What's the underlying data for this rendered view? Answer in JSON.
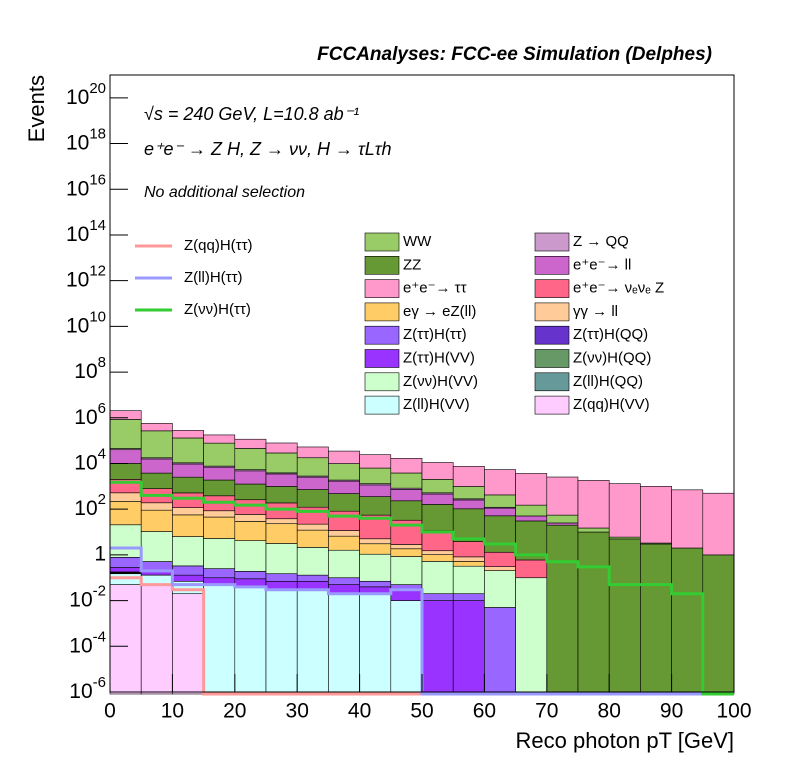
{
  "chart_data": {
    "type": "histogram",
    "title": "FCCAnalyses: FCC-ee Simulation (Delphes)",
    "annotations": [
      "√s = 240 GeV, L=10.8 ab⁻¹",
      "e⁺e⁻ → Z H, Z → νν, H → τLτh",
      "No additional selection"
    ],
    "x_label": "Reco photon pT [GeV]",
    "y_label": "Events",
    "log_y": true,
    "stacked": true,
    "bins": [
      0,
      5,
      10,
      15,
      20,
      25,
      30,
      35,
      40,
      45,
      50,
      55,
      60,
      65,
      70,
      75,
      80,
      85,
      90,
      95,
      100
    ],
    "xlim": [
      0,
      100
    ],
    "xticks": [
      0,
      10,
      20,
      30,
      40,
      50,
      60,
      70,
      80,
      90,
      100
    ],
    "ylim": [
      1e-06,
      1e+21
    ],
    "yticks": [
      {
        "value": 1e-06,
        "label": "10^-6"
      },
      {
        "value": 0.0001,
        "label": "10^-4"
      },
      {
        "value": 0.01,
        "label": "10^-2"
      },
      1,
      {
        "value": 100.0,
        "label": "10^2"
      },
      {
        "value": 10000.0,
        "label": "10^4"
      },
      {
        "value": 1000000.0,
        "label": "10^6"
      },
      {
        "value": 100000000.0,
        "label": "10^8"
      },
      {
        "value": 10000000000.0,
        "label": "10^10"
      },
      {
        "value": 1000000000000.0,
        "label": "10^12"
      },
      {
        "value": 100000000000000.0,
        "label": "10^14"
      },
      {
        "value": 1e+16,
        "label": "10^16"
      },
      {
        "value": 1e+18,
        "label": "10^18"
      },
      {
        "value": 1e+20,
        "label": "10^20"
      }
    ],
    "overlay_series": [
      {
        "name": "Z(qq)H(ττ)",
        "color": "#ff9999",
        "values": [
          0.1,
          0.05,
          0.03,
          0,
          0,
          0,
          0,
          0,
          0,
          0,
          0,
          0,
          0,
          0,
          0,
          0,
          0,
          0,
          0,
          0
        ]
      },
      {
        "name": "Z(ll)H(ττ)",
        "color": "#9999ff",
        "values": [
          2,
          0.2,
          0.05,
          0.05,
          0.04,
          0.03,
          0.03,
          0.02,
          0.02,
          0.03,
          0,
          0,
          0,
          0,
          0,
          0,
          0,
          0,
          0,
          0
        ]
      },
      {
        "name": "Z(νν)H(ττ)",
        "color": "#33cc33",
        "values": [
          1500,
          400,
          300,
          200,
          150,
          100,
          80,
          50,
          40,
          20,
          10,
          5,
          3,
          1,
          0.5,
          0.3,
          0.05,
          0.05,
          0.02,
          0
        ]
      }
    ],
    "series": [
      {
        "name": "WW",
        "color": "#99cc66",
        "values": [
          800000,
          250000,
          120000,
          70000,
          40000,
          25000,
          15000,
          8000,
          5000,
          3000,
          1500,
          700,
          300,
          100,
          30,
          5,
          1,
          0.3,
          0,
          0
        ]
      },
      {
        "name": "ZZ",
        "color": "#669933",
        "values": [
          8000,
          3000,
          2000,
          1500,
          1000,
          800,
          600,
          400,
          300,
          200,
          150,
          100,
          50,
          30,
          20,
          10,
          5,
          3,
          2,
          1
        ]
      },
      {
        "name": "e⁺e⁻→ ττ",
        "color": "#ff99cc",
        "values": [
          1200000,
          300000,
          150000,
          100000,
          70000,
          50000,
          35000,
          25000,
          18000,
          13000,
          9000,
          6500,
          5000,
          3500,
          2500,
          1800,
          1300,
          1000,
          700,
          500
        ]
      },
      {
        "name": "eγ → eZ(ll)",
        "color": "#ffcc66",
        "values": [
          200,
          80,
          50,
          40,
          25,
          20,
          10,
          5,
          2,
          1,
          0.5,
          0.2,
          0,
          0,
          0,
          0,
          0,
          0,
          0,
          0
        ]
      },
      {
        "name": "Z(ττ)H(ττ)",
        "color": "#9966ff",
        "values": [
          0.5,
          0.3,
          0.2,
          0.15,
          0.1,
          0.08,
          0.06,
          0.05,
          0.03,
          0.02,
          0.01,
          0.01,
          0.005,
          0,
          0,
          0,
          0,
          0,
          0,
          0
        ]
      },
      {
        "name": "Z(ττ)H(VV)",
        "color": "#9933ff",
        "values": [
          0.1,
          0.08,
          0.06,
          0.05,
          0.05,
          0.04,
          0.04,
          0.03,
          0.02,
          0.02,
          0.01,
          0.01,
          0,
          0,
          0,
          0,
          0,
          0,
          0,
          0
        ]
      },
      {
        "name": "Z(νν)H(VV)",
        "color": "#ccffcc",
        "values": [
          20,
          10,
          6,
          5,
          4,
          3,
          2,
          1.5,
          1,
          0.8,
          0.5,
          0.3,
          0.2,
          0.1,
          0,
          0,
          0,
          0,
          0,
          0
        ]
      },
      {
        "name": "Z(ll)H(VV)",
        "color": "#ccffff",
        "values": [
          0.1,
          0.08,
          0.05,
          0.05,
          0.04,
          0.03,
          0.03,
          0.02,
          0.02,
          0.01,
          0,
          0,
          0,
          0,
          0,
          0,
          0,
          0,
          0,
          0
        ]
      },
      {
        "name": "Z → QQ",
        "color": "#cc99cc",
        "values": [
          5000,
          2000,
          1200,
          800,
          600,
          400,
          300,
          200,
          150,
          100,
          60,
          30,
          10,
          0,
          0,
          0,
          0,
          0,
          0,
          0
        ]
      },
      {
        "name": "e⁺e⁻→ ll",
        "color": "#cc66cc",
        "values": [
          30000,
          12000,
          7000,
          5000,
          3500,
          2500,
          1800,
          1200,
          800,
          500,
          300,
          150,
          60,
          20,
          5,
          0,
          0,
          0,
          0,
          0
        ]
      },
      {
        "name": "e⁺e⁻→ νₑνₑ Z",
        "color": "#ff6688",
        "values": [
          1500,
          600,
          400,
          300,
          200,
          150,
          100,
          70,
          50,
          30,
          10,
          3,
          1,
          0.5,
          0,
          0,
          0,
          0,
          0,
          0
        ]
      },
      {
        "name": "γγ → ll",
        "color": "#ffcc99",
        "values": [
          300,
          100,
          60,
          40,
          30,
          15,
          10,
          5,
          2,
          1,
          0.5,
          0.3,
          0.1,
          0,
          0,
          0,
          0,
          0,
          0,
          0
        ]
      },
      {
        "name": "Z(ττ)H(QQ)",
        "color": "#6633cc",
        "values": [
          0.01,
          0.001,
          0,
          0,
          0,
          0,
          0,
          0,
          0,
          0,
          0,
          0,
          0,
          0,
          0,
          0,
          0,
          0,
          0,
          0
        ]
      },
      {
        "name": "Z(νν)H(QQ)",
        "color": "#669966",
        "values": [
          0.01,
          0,
          0,
          0,
          0,
          0,
          0,
          0,
          0,
          0,
          0,
          0,
          0,
          0,
          0,
          0,
          0,
          0,
          0,
          0
        ]
      },
      {
        "name": "Z(ll)H(QQ)",
        "color": "#669999",
        "values": [
          0.01,
          0,
          0,
          0,
          0,
          0,
          0,
          0,
          0,
          0,
          0,
          0,
          0,
          0,
          0,
          0,
          0,
          0,
          0,
          0
        ]
      },
      {
        "name": "Z(qq)H(VV)",
        "color": "#ffccff",
        "values": [
          0.05,
          0.05,
          0.02,
          0,
          0,
          0,
          0,
          0,
          0,
          0,
          0,
          0,
          0,
          0,
          0,
          0,
          0,
          0,
          0,
          0
        ]
      }
    ]
  }
}
